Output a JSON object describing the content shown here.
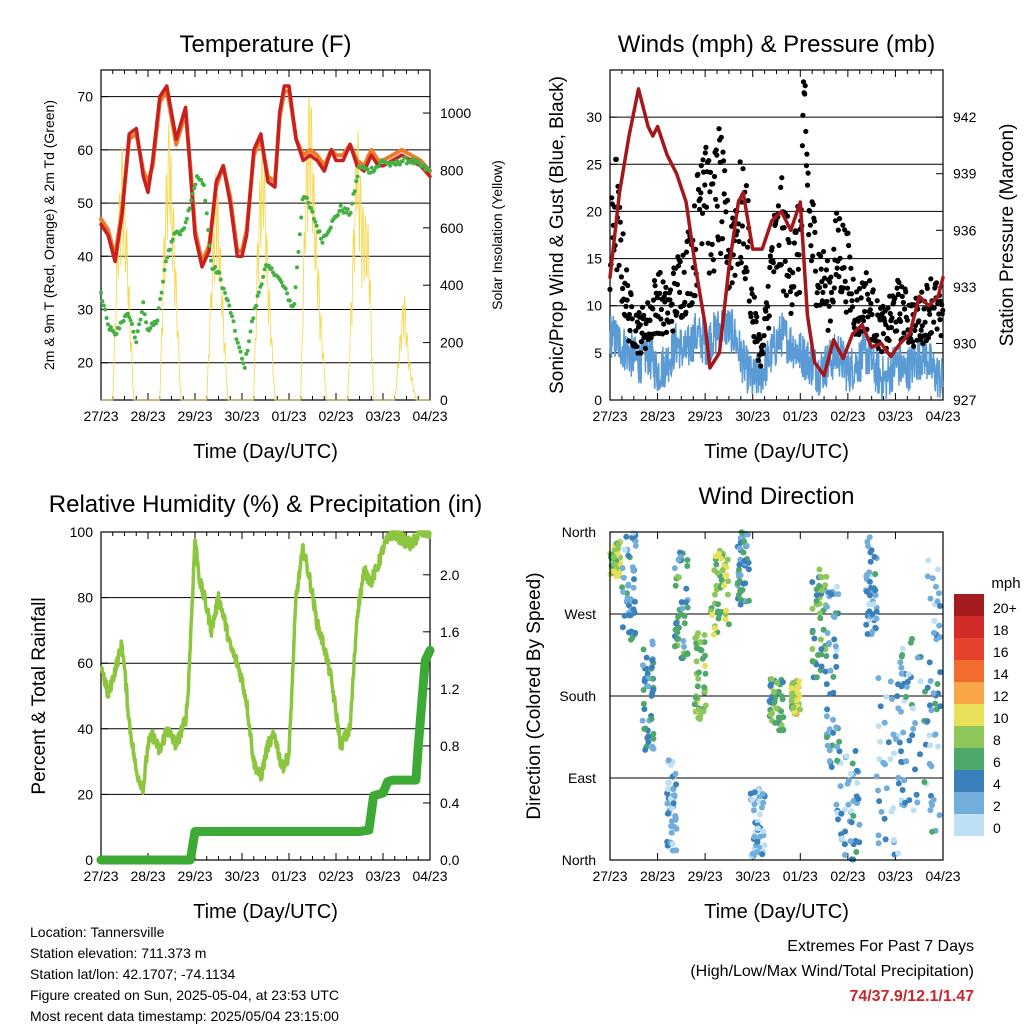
{
  "colors": {
    "temp2m": "#c8201e",
    "temp9m": "#f07a28",
    "dewpoint": "#44b044",
    "solar": "#f5d74a",
    "pressure": "#a3181c",
    "gust": "#000000",
    "sonic": "#5b9bd5",
    "rh": "#8cc63f",
    "precip": "#3daa35",
    "extremes": "#c8282d"
  },
  "chart_data": [
    {
      "type": "line",
      "title": "Temperature (F)",
      "xlabel": "Time (Day/UTC)",
      "ylabel": "2m & 9m T (Red, Orange) & 2m Td (Green)",
      "y2label": "Solar Insolation (Yellow)",
      "x_ticks": [
        "27/23",
        "28/23",
        "29/23",
        "30/23",
        "01/23",
        "02/23",
        "03/23",
        "04/23"
      ],
      "xlim": [
        0,
        7
      ],
      "ylim": [
        13,
        75
      ],
      "y_ticks": [
        20,
        30,
        40,
        50,
        60,
        70
      ],
      "y2lim": [
        0,
        1150
      ],
      "y2_ticks": [
        0,
        200,
        400,
        600,
        800,
        1000
      ],
      "grid": true,
      "series": [
        {
          "name": "2m T",
          "axis": "left",
          "x": [
            0,
            0.15,
            0.3,
            0.45,
            0.6,
            0.75,
            0.9,
            1.0,
            1.1,
            1.25,
            1.4,
            1.6,
            1.8,
            1.9,
            2.0,
            2.15,
            2.3,
            2.45,
            2.6,
            2.75,
            2.9,
            3.0,
            3.1,
            3.25,
            3.4,
            3.55,
            3.7,
            3.8,
            3.9,
            4.0,
            4.15,
            4.3,
            4.45,
            4.6,
            4.75,
            4.9,
            5.0,
            5.15,
            5.3,
            5.45,
            5.6,
            5.75,
            5.9,
            6.0,
            6.2,
            6.4,
            6.6,
            6.8,
            7.0
          ],
          "y": [
            46,
            44,
            39,
            48,
            63,
            64,
            55,
            52,
            58,
            70,
            72,
            62,
            68,
            56,
            44,
            38,
            41,
            54,
            57,
            50,
            40,
            40,
            44,
            60,
            63,
            54,
            53,
            67,
            72,
            72,
            62,
            58,
            59,
            58,
            56,
            60,
            58,
            58,
            61,
            57,
            56,
            59,
            57,
            57,
            58,
            59,
            58,
            57,
            55
          ]
        },
        {
          "name": "9m T",
          "axis": "left",
          "x": [
            0,
            0.15,
            0.3,
            0.45,
            0.6,
            0.75,
            0.9,
            1.0,
            1.1,
            1.25,
            1.4,
            1.6,
            1.8,
            1.9,
            2.0,
            2.15,
            2.3,
            2.45,
            2.6,
            2.75,
            2.9,
            3.0,
            3.1,
            3.25,
            3.4,
            3.55,
            3.7,
            3.8,
            3.9,
            4.0,
            4.15,
            4.3,
            4.45,
            4.6,
            4.75,
            4.9,
            5.0,
            5.15,
            5.3,
            5.45,
            5.6,
            5.75,
            5.9,
            6.0,
            6.2,
            6.4,
            6.6,
            6.8,
            7.0
          ],
          "y": [
            47,
            45,
            40,
            49,
            62,
            63,
            56,
            54,
            57,
            69,
            71,
            61,
            67,
            57,
            45,
            39,
            42,
            53,
            57,
            51,
            41,
            41,
            45,
            59,
            62,
            55,
            54,
            66,
            71,
            71,
            62,
            59,
            60,
            59,
            57,
            60,
            59,
            59,
            61,
            58,
            57,
            60,
            58,
            58,
            59,
            60,
            59,
            58,
            56
          ]
        },
        {
          "name": "2m Td",
          "axis": "left",
          "x": [
            0,
            0.15,
            0.3,
            0.45,
            0.6,
            0.75,
            0.9,
            1.0,
            1.2,
            1.4,
            1.6,
            1.7,
            1.85,
            1.95,
            2.05,
            2.2,
            2.35,
            2.5,
            2.6,
            2.75,
            2.9,
            3.05,
            3.2,
            3.35,
            3.5,
            3.7,
            3.9,
            4.1,
            4.3,
            4.5,
            4.7,
            4.9,
            5.1,
            5.3,
            5.5,
            5.7,
            5.9,
            6.0,
            6.2,
            6.4,
            6.6,
            6.8,
            7.0
          ],
          "y": [
            33,
            27,
            25,
            28,
            29,
            24,
            31,
            26,
            28,
            40,
            45,
            44,
            48,
            52,
            55,
            53,
            38,
            37,
            34,
            30,
            24,
            19,
            27,
            33,
            38,
            37,
            34,
            30,
            52,
            48,
            43,
            46,
            49,
            48,
            57,
            56,
            57,
            58,
            57,
            58,
            58,
            57,
            56
          ]
        },
        {
          "name": "Solar",
          "axis": "right",
          "x": [
            0,
            0.25,
            0.35,
            0.45,
            0.55,
            0.7,
            1.25,
            1.35,
            1.45,
            1.55,
            1.7,
            2.25,
            2.35,
            2.45,
            2.55,
            2.7,
            3.25,
            3.35,
            3.45,
            3.55,
            3.7,
            4.25,
            4.35,
            4.45,
            4.55,
            4.7,
            4.8,
            5.25,
            5.35,
            5.45,
            5.55,
            5.7,
            5.8,
            6.25,
            6.35,
            6.45,
            6.55,
            6.7,
            7.0
          ],
          "y": [
            0,
            0,
            600,
            900,
            600,
            0,
            0,
            650,
            1000,
            650,
            0,
            0,
            450,
            850,
            500,
            0,
            0,
            700,
            950,
            500,
            0,
            0,
            800,
            1150,
            700,
            250,
            0,
            0,
            500,
            1000,
            700,
            600,
            0,
            0,
            200,
            400,
            150,
            0,
            0
          ]
        }
      ]
    },
    {
      "type": "line",
      "title": "Winds (mph) & Pressure (mb)",
      "xlabel": "Time (Day/UTC)",
      "ylabel": "Sonic/Prop Wind & Gust (Blue, Black)",
      "y2label": "Station Pressure (Maroon)",
      "x_ticks": [
        "27/23",
        "28/23",
        "29/23",
        "30/23",
        "01/23",
        "02/23",
        "03/23",
        "04/23"
      ],
      "xlim": [
        0,
        7
      ],
      "ylim": [
        0,
        35
      ],
      "y_ticks": [
        0,
        5,
        10,
        15,
        20,
        25,
        30
      ],
      "y2lim": [
        927,
        944.5
      ],
      "y2_ticks": [
        927,
        930,
        933,
        936,
        939,
        942
      ],
      "grid": true,
      "series": [
        {
          "name": "Sonic wind",
          "axis": "left",
          "x": [
            0,
            0.2,
            0.4,
            0.6,
            0.8,
            1.0,
            1.2,
            1.4,
            1.6,
            1.8,
            2.0,
            2.2,
            2.4,
            2.6,
            2.8,
            3.0,
            3.2,
            3.4,
            3.6,
            3.8,
            4.0,
            4.2,
            4.4,
            4.6,
            4.8,
            5.0,
            5.2,
            5.4,
            5.6,
            5.8,
            6.0,
            6.2,
            6.4,
            6.6,
            6.8,
            7.0
          ],
          "y": [
            7,
            6,
            5,
            4,
            5,
            3,
            4,
            6,
            5,
            7,
            6,
            7,
            8,
            7,
            4,
            2,
            3,
            5,
            7,
            6,
            5,
            4,
            3,
            4,
            5,
            3,
            4,
            5,
            3,
            2,
            4,
            3,
            4,
            5,
            3,
            2
          ]
        },
        {
          "name": "Gust",
          "axis": "left",
          "x": [
            0,
            0.1,
            0.2,
            0.4,
            0.6,
            0.8,
            1.0,
            1.2,
            1.4,
            1.6,
            1.8,
            2.0,
            2.1,
            2.3,
            2.5,
            2.7,
            2.9,
            3.0,
            3.2,
            3.4,
            3.6,
            3.8,
            4.0,
            4.1,
            4.2,
            4.4,
            4.6,
            4.8,
            5.0,
            5.2,
            5.4,
            5.6,
            5.8,
            6.0,
            6.2,
            6.4,
            6.6,
            6.8,
            7.0
          ],
          "y": [
            15,
            24,
            18,
            10,
            8,
            9,
            12,
            10,
            13,
            15,
            18,
            32,
            20,
            25,
            17,
            22,
            19,
            10,
            5,
            16,
            20,
            15,
            18,
            33,
            20,
            15,
            12,
            18,
            15,
            10,
            12,
            9,
            8,
            11,
            10,
            9,
            10,
            12,
            8
          ]
        },
        {
          "name": "Pressure",
          "axis": "right",
          "x": [
            0,
            0.2,
            0.4,
            0.6,
            0.8,
            0.9,
            1.0,
            1.2,
            1.4,
            1.6,
            1.8,
            2.0,
            2.1,
            2.3,
            2.5,
            2.7,
            2.8,
            3.0,
            3.2,
            3.4,
            3.6,
            3.8,
            4.0,
            4.15,
            4.3,
            4.5,
            4.7,
            4.9,
            5.1,
            5.3,
            5.5,
            5.7,
            5.9,
            6.1,
            6.3,
            6.5,
            6.7,
            6.9,
            7.0
          ],
          "y": [
            933.5,
            938,
            941,
            943.5,
            941.5,
            941,
            941.5,
            940,
            939,
            937.5,
            934,
            931,
            928.7,
            929.5,
            934,
            937.5,
            938,
            935,
            935,
            936.5,
            937,
            936,
            937.5,
            931.5,
            929,
            928.3,
            930.2,
            929.2,
            930.5,
            931,
            929.8,
            930,
            929.3,
            930,
            930.5,
            932.5,
            932,
            932.5,
            933.5
          ]
        }
      ]
    },
    {
      "type": "line",
      "title": "Relative Humidity (%) & Precipitation (in)",
      "xlabel": "Time (Day/UTC)",
      "ylabel": "Percent & Total Rainfall",
      "x_ticks": [
        "27/23",
        "28/23",
        "29/23",
        "30/23",
        "01/23",
        "02/23",
        "03/23",
        "04/23"
      ],
      "xlim": [
        0,
        7
      ],
      "ylim": [
        0,
        100
      ],
      "y_ticks": [
        0,
        20,
        40,
        60,
        80,
        100
      ],
      "y2lim": [
        0,
        2.3
      ],
      "y2_ticks": [
        0.0,
        0.4,
        0.8,
        1.2,
        1.6,
        2.0
      ],
      "grid": true,
      "series": [
        {
          "name": "RH",
          "axis": "left",
          "x": [
            0,
            0.15,
            0.3,
            0.45,
            0.6,
            0.75,
            0.9,
            1.0,
            1.1,
            1.25,
            1.4,
            1.6,
            1.8,
            1.85,
            2.0,
            2.1,
            2.2,
            2.35,
            2.5,
            2.6,
            2.75,
            2.9,
            3.0,
            3.1,
            3.25,
            3.4,
            3.55,
            3.7,
            3.85,
            4.0,
            4.15,
            4.3,
            4.45,
            4.6,
            4.75,
            4.9,
            5.0,
            5.1,
            5.3,
            5.45,
            5.6,
            5.75,
            5.9,
            6.0,
            6.2,
            6.4,
            6.6,
            6.8,
            7.0
          ],
          "y": [
            60,
            50,
            58,
            66,
            42,
            27,
            22,
            35,
            38,
            33,
            40,
            35,
            43,
            50,
            98,
            85,
            80,
            70,
            80,
            75,
            65,
            60,
            55,
            48,
            30,
            25,
            35,
            38,
            28,
            32,
            80,
            95,
            85,
            72,
            65,
            55,
            45,
            35,
            40,
            75,
            88,
            85,
            90,
            95,
            100,
            98,
            96,
            100,
            100
          ]
        },
        {
          "name": "Precipitation",
          "axis": "right",
          "x": [
            0,
            1.9,
            1.95,
            2.0,
            2.5,
            3.0,
            4.0,
            5.0,
            5.5,
            5.7,
            5.8,
            5.9,
            6.0,
            6.1,
            6.2,
            6.3,
            6.7,
            6.75,
            6.8,
            6.85,
            6.9,
            7.0
          ],
          "y": [
            0,
            0,
            0.1,
            0.2,
            0.2,
            0.2,
            0.2,
            0.2,
            0.2,
            0.21,
            0.45,
            0.46,
            0.47,
            0.55,
            0.56,
            0.56,
            0.56,
            0.8,
            1.0,
            1.2,
            1.4,
            1.47
          ]
        }
      ]
    },
    {
      "type": "scatter",
      "title": "Wind Direction",
      "xlabel": "Time (Day/UTC)",
      "ylabel": "Direction (Colored By Speed)",
      "x_ticks": [
        "27/23",
        "28/23",
        "29/23",
        "30/23",
        "01/23",
        "02/23",
        "03/23",
        "04/23"
      ],
      "y_ticks": [
        "North",
        "East",
        "South",
        "West",
        "North"
      ],
      "xlim": [
        0,
        7
      ],
      "ylim": [
        0,
        360
      ],
      "grid": true,
      "colorbar_title": "mph",
      "colorbar_labels": [
        "20+",
        "18",
        "16",
        "14",
        "12",
        "10",
        "8",
        "6",
        "4",
        "2",
        "0"
      ],
      "colorbar_colors": [
        "#a51c1e",
        "#d32b2a",
        "#e6432f",
        "#f26b2f",
        "#f9a648",
        "#e9e05a",
        "#8dc75b",
        "#4ea86c",
        "#3a81bb",
        "#72addb",
        "#bde0f5"
      ],
      "clusters": [
        {
          "x": 0.1,
          "dir": 330,
          "spread_x": 0.12,
          "spread_dir": 20,
          "speed": 8
        },
        {
          "x": 0.4,
          "dir": 300,
          "spread_x": 0.15,
          "spread_dir": 60,
          "speed": 3
        },
        {
          "x": 0.8,
          "dir": 180,
          "spread_x": 0.12,
          "spread_dir": 60,
          "speed": 4
        },
        {
          "x": 1.3,
          "dir": 60,
          "spread_x": 0.1,
          "spread_dir": 50,
          "speed": 2
        },
        {
          "x": 1.5,
          "dir": 280,
          "spread_x": 0.15,
          "spread_dir": 60,
          "speed": 5
        },
        {
          "x": 1.9,
          "dir": 200,
          "spread_x": 0.12,
          "spread_dir": 50,
          "speed": 8
        },
        {
          "x": 2.3,
          "dir": 290,
          "spread_x": 0.2,
          "spread_dir": 50,
          "speed": 8
        },
        {
          "x": 2.8,
          "dir": 320,
          "spread_x": 0.12,
          "spread_dir": 40,
          "speed": 4
        },
        {
          "x": 3.1,
          "dir": 40,
          "spread_x": 0.15,
          "spread_dir": 40,
          "speed": 2
        },
        {
          "x": 3.5,
          "dir": 170,
          "spread_x": 0.15,
          "spread_dir": 30,
          "speed": 6
        },
        {
          "x": 3.9,
          "dir": 180,
          "spread_x": 0.1,
          "spread_dir": 20,
          "speed": 9
        },
        {
          "x": 4.4,
          "dir": 260,
          "spread_x": 0.15,
          "spread_dir": 60,
          "speed": 6
        },
        {
          "x": 4.7,
          "dir": 200,
          "spread_x": 0.15,
          "spread_dir": 100,
          "speed": 3
        },
        {
          "x": 5.0,
          "dir": 60,
          "spread_x": 0.25,
          "spread_dir": 60,
          "speed": 3
        },
        {
          "x": 5.5,
          "dir": 300,
          "spread_x": 0.12,
          "spread_dir": 60,
          "speed": 3
        },
        {
          "x": 5.9,
          "dir": 100,
          "spread_x": 0.3,
          "spread_dir": 100,
          "speed": 2
        },
        {
          "x": 6.4,
          "dir": 150,
          "spread_x": 0.3,
          "spread_dir": 100,
          "speed": 3
        },
        {
          "x": 6.8,
          "dir": 180,
          "spread_x": 0.15,
          "spread_dir": 150,
          "speed": 3
        }
      ]
    }
  ],
  "info": {
    "location": "Location: Tannersville",
    "elevation": "Station elevation: 711.373 m",
    "latlon": "Station lat/lon: 42.1707; -74.1134",
    "created": "Figure created on Sun, 2025-05-04, at 23:53 UTC",
    "recent": "Most recent data timestamp: 2025/05/04 23:15:00"
  },
  "extremes": {
    "title": "Extremes For Past 7 Days",
    "subtitle": "(High/Low/Max Wind/Total Precipitation)",
    "values": "74/37.9/12.1/1.47"
  }
}
